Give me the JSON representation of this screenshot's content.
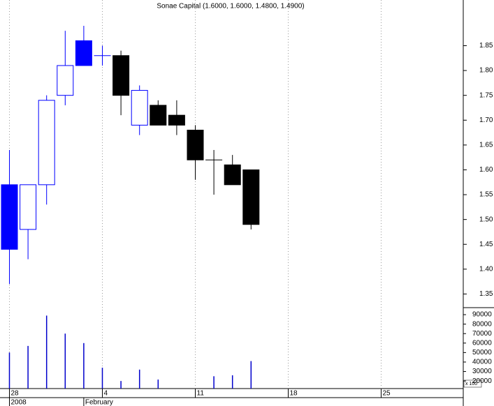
{
  "chart_data": [
    {
      "type": "candlestick",
      "title": "Sonae Capital (1.6000, 1.6000, 1.4800, 1.4900)",
      "categories": [
        "28",
        null,
        null,
        null,
        null,
        "4",
        null,
        null,
        null,
        null,
        "11",
        null,
        null,
        null,
        null,
        "18",
        null,
        null,
        null,
        null,
        "25",
        null,
        null,
        null,
        null
      ],
      "periods": [
        "2008",
        null,
        null,
        null,
        "February",
        null,
        null,
        null,
        null,
        null,
        null,
        null,
        null,
        null,
        null,
        null,
        null,
        null,
        null,
        null,
        null,
        null,
        null,
        null,
        null
      ],
      "open": [
        1.57,
        1.48,
        1.57,
        1.75,
        1.86,
        1.83,
        1.83,
        1.69,
        1.73,
        1.71,
        1.68,
        1.62,
        1.61,
        1.6,
        null,
        null,
        null,
        null,
        null,
        null,
        null,
        null,
        null,
        null,
        null
      ],
      "high": [
        1.64,
        1.57,
        1.75,
        1.88,
        1.89,
        1.85,
        1.84,
        1.77,
        1.74,
        1.74,
        1.69,
        1.64,
        1.63,
        1.6,
        null,
        null,
        null,
        null,
        null,
        null,
        null,
        null,
        null,
        null,
        null
      ],
      "low": [
        1.37,
        1.42,
        1.53,
        1.73,
        1.81,
        1.81,
        1.71,
        1.67,
        1.69,
        1.67,
        1.58,
        1.55,
        1.57,
        1.48,
        null,
        null,
        null,
        null,
        null,
        null,
        null,
        null,
        null,
        null,
        null
      ],
      "close": [
        1.44,
        1.57,
        1.74,
        1.81,
        1.81,
        1.83,
        1.75,
        1.76,
        1.69,
        1.69,
        1.62,
        1.62,
        1.57,
        1.49,
        null,
        null,
        null,
        null,
        null,
        null,
        null,
        null,
        null,
        null,
        null
      ],
      "colors": [
        "#0000ff",
        "#0000ff",
        "#0000ff",
        "#0000ff",
        "#0000ff",
        "#0000ff",
        "#000000",
        "#0000ff",
        "#000000",
        "#000000",
        "#000000",
        "#000000",
        "#000000",
        "#000000",
        null,
        null,
        null,
        null,
        null,
        null,
        null,
        null,
        null,
        null,
        null
      ],
      "ylim": [
        1.3225,
        1.942
      ],
      "yticks": [
        1.35,
        {
          "value": 1.4,
          "label": "1.40"
        },
        1.45,
        {
          "value": 1.5,
          "label": "1.50"
        },
        1.55,
        {
          "value": 1.6,
          "label": "1.60"
        },
        1.65,
        {
          "value": 1.7,
          "label": "1.70"
        },
        1.75,
        {
          "value": 1.8,
          "label": "1.80"
        },
        1.85
      ],
      "grid": true
    },
    {
      "type": "bar",
      "scale_label": "x 100",
      "color": "#0000cc",
      "values": [
        50000,
        57000,
        89000,
        70000,
        60000,
        34000,
        20000,
        32000,
        21500,
        null,
        null,
        25000,
        26000,
        41000,
        null,
        null,
        null,
        null,
        null,
        null,
        null,
        null,
        null,
        null,
        null
      ],
      "ylim": [
        12000,
        97400
      ],
      "yticks": [
        20000,
        30000,
        40000,
        50000,
        60000,
        70000,
        80000,
        90000
      ]
    }
  ]
}
